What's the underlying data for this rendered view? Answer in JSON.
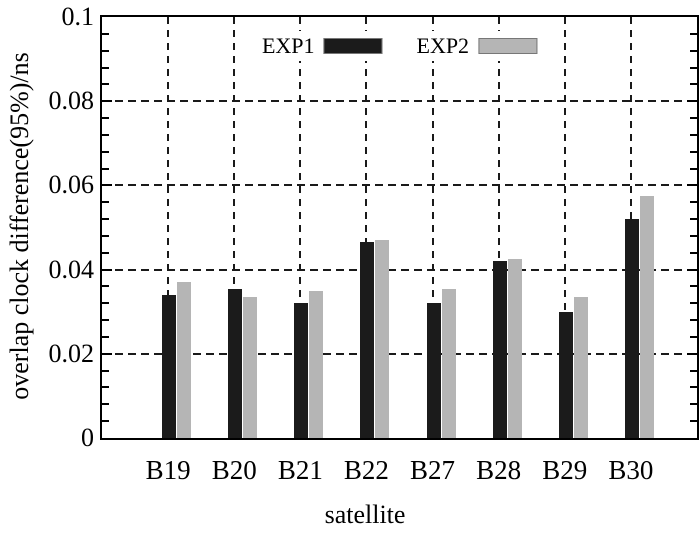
{
  "chart_data": {
    "type": "bar",
    "title": "",
    "xlabel": "satellite",
    "ylabel": "overlap clock difference(95%)/ns",
    "categories": [
      "B19",
      "B20",
      "B21",
      "B22",
      "B27",
      "B28",
      "B29",
      "B30"
    ],
    "series": [
      {
        "name": "EXP1",
        "color": "#1b1b1b",
        "values": [
          0.034,
          0.0355,
          0.032,
          0.0465,
          0.032,
          0.042,
          0.03,
          0.052
        ]
      },
      {
        "name": "EXP2",
        "color": "#b5b5b5",
        "values": [
          0.037,
          0.0335,
          0.035,
          0.047,
          0.0355,
          0.0425,
          0.0335,
          0.0575
        ]
      }
    ],
    "ylim": [
      0,
      0.1
    ],
    "ytick_values": [
      0,
      0.02,
      0.04,
      0.06,
      0.08,
      0.1
    ],
    "ytick_labels": [
      "0",
      "0.02",
      "0.04",
      "0.06",
      "0.08",
      "0.1"
    ],
    "minor_tick_step": 0.004,
    "grid": "dashed horizontal lines at major y ticks; dashed vertical lines at category centers",
    "legend_position": "top-center-inside",
    "axis_color": "#000000",
    "grid_color": "#1a1a1a",
    "background_color": "#ffffff"
  }
}
